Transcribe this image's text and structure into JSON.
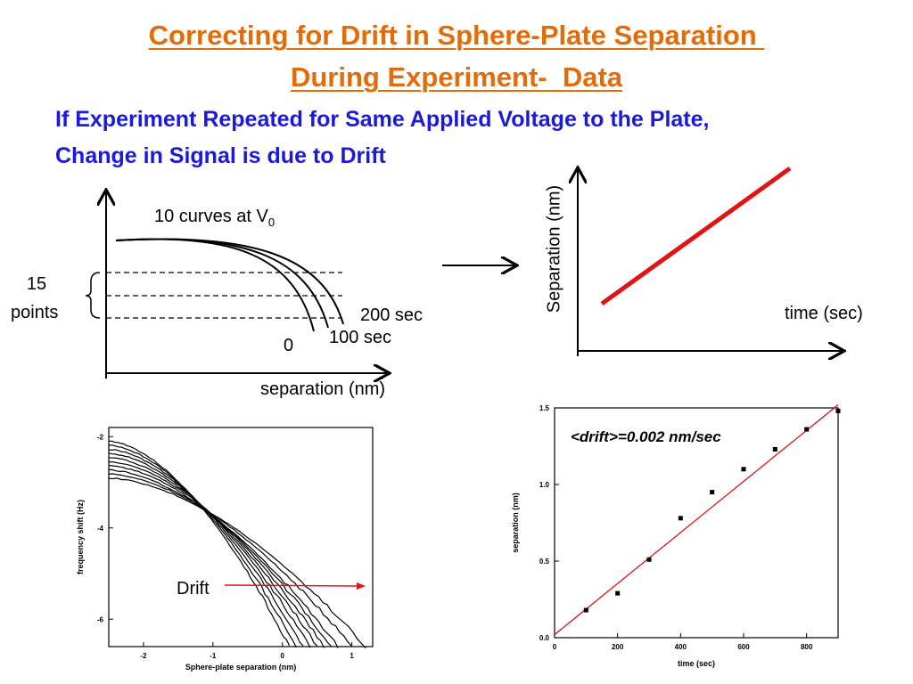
{
  "slide": {
    "title_line1": "Correcting for Drift in Sphere-Plate Separation ",
    "title_line2": "During Experiment-  Data",
    "subtitle_line1": "If Experiment Repeated for Same Applied Voltage to the Plate,",
    "subtitle_line2": "Change in Signal is due to Drift"
  },
  "schematic": {
    "curves_label": "10 curves at V",
    "curves_label_sub": "0",
    "bracket_label_line1": "15",
    "bracket_label_line2": "points",
    "curve_label_200": "200 sec",
    "curve_label_100": "100 sec",
    "curve_label_0": "0",
    "xlabel": "separation (nm)"
  },
  "separation_schematic": {
    "ylabel": "Separation (nm)",
    "xlabel": "time (sec)",
    "line_color": "#e01414"
  },
  "chart_data": [
    {
      "type": "line",
      "xlabel": "Sphere-plate separation (nm)",
      "ylabel": "frequency shift (Hz)",
      "xlim": [
        -2.5,
        1.3
      ],
      "ylim": [
        -6.6,
        -1.8
      ],
      "x_ticks": [
        "-2",
        "-1",
        "0",
        "1"
      ],
      "y_ticks": [
        "-2",
        "-4",
        "-6"
      ],
      "annotation": "Drift",
      "series_count": 10,
      "curve_end_x": [
        0.1,
        0.2,
        0.3,
        0.4,
        0.5,
        0.6,
        0.7,
        0.8,
        1.0,
        1.2
      ]
    },
    {
      "type": "scatter",
      "xlabel": "time (sec)",
      "ylabel": "separation (nm)",
      "xlim": [
        0,
        900
      ],
      "ylim": [
        0,
        1.5
      ],
      "x_ticks": [
        "0",
        "200",
        "400",
        "600",
        "800"
      ],
      "y_ticks": [
        "0.0",
        "0.5",
        "1.0",
        "1.5"
      ],
      "annotation": "<drift>=0.002 nm/sec",
      "x": [
        100,
        200,
        300,
        400,
        500,
        600,
        700,
        800,
        900
      ],
      "y": [
        0.18,
        0.29,
        0.51,
        0.78,
        0.95,
        1.1,
        1.23,
        1.36,
        1.48
      ],
      "fit": {
        "x": [
          0,
          900
        ],
        "y": [
          0.02,
          1.52
        ],
        "color": "#e01414"
      }
    }
  ]
}
